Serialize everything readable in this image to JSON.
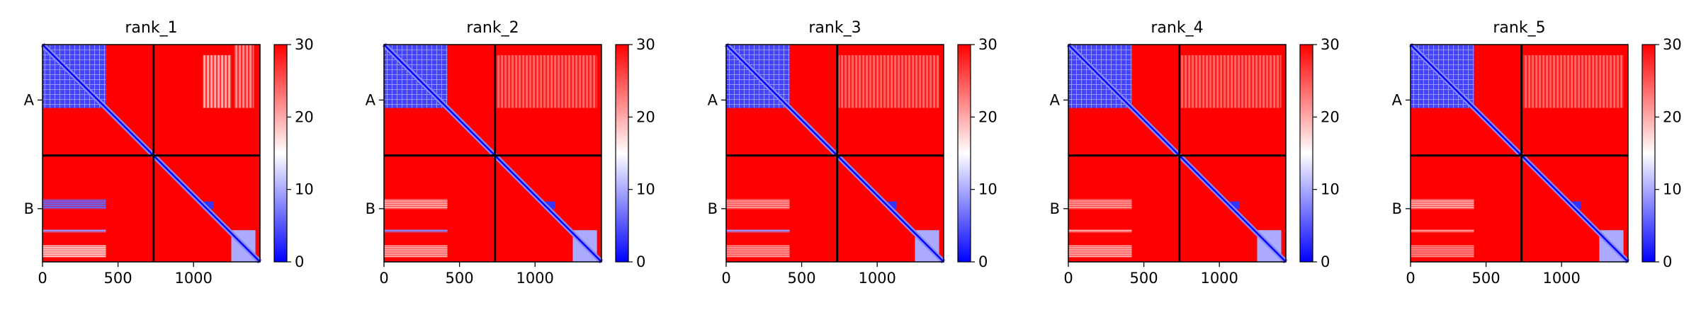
{
  "chart_data": [
    {
      "type": "heatmap",
      "title": "rank_1",
      "xlim": [
        0,
        1440
      ],
      "ylim": [
        1440,
        0
      ],
      "x_ticks": [
        0,
        500,
        1000
      ],
      "chain_ticks": [
        "A",
        "B"
      ],
      "chain_boundary": 735,
      "chains": [
        {
          "name": "A",
          "start": 0,
          "end": 735
        },
        {
          "name": "B",
          "start": 735,
          "end": 1440
        }
      ],
      "colorbar": {
        "min": 0,
        "max": 30,
        "ticks": [
          0,
          10,
          20,
          30
        ],
        "colors": [
          "#0000ff",
          "#ffffff",
          "#ff0000"
        ]
      },
      "low_error_blocks": [
        {
          "x": [
            0,
            420
          ],
          "y": [
            0,
            420
          ],
          "value": 4,
          "pattern": "grid"
        },
        {
          "x": [
            0,
            420
          ],
          "y": [
            1025,
            1090
          ],
          "value": 6,
          "pattern": "rows"
        },
        {
          "x": [
            0,
            420
          ],
          "y": [
            1225,
            1245
          ],
          "value": 9,
          "pattern": "rows"
        },
        {
          "x": [
            0,
            420
          ],
          "y": [
            1330,
            1410
          ],
          "value": 18,
          "pattern": "rows"
        },
        {
          "x": [
            1060,
            1250
          ],
          "y": [
            70,
            420
          ],
          "value": 20,
          "pattern": "cols"
        },
        {
          "x": [
            1270,
            1400
          ],
          "y": [
            0,
            420
          ],
          "value": 22,
          "pattern": "cols"
        },
        {
          "x": [
            1060,
            1130
          ],
          "y": [
            1040,
            1090
          ],
          "value": 3,
          "pattern": "solid"
        },
        {
          "x": [
            1250,
            1410
          ],
          "y": [
            1230,
            1440
          ],
          "value": 10,
          "pattern": "solid"
        }
      ]
    },
    {
      "type": "heatmap",
      "title": "rank_2",
      "xlim": [
        0,
        1440
      ],
      "ylim": [
        1440,
        0
      ],
      "x_ticks": [
        0,
        500,
        1000
      ],
      "chain_ticks": [
        "A",
        "B"
      ],
      "chain_boundary": 735,
      "chains": [
        {
          "name": "A",
          "start": 0,
          "end": 735
        },
        {
          "name": "B",
          "start": 735,
          "end": 1440
        }
      ],
      "colorbar": {
        "min": 0,
        "max": 30,
        "ticks": [
          0,
          10,
          20,
          30
        ],
        "colors": [
          "#0000ff",
          "#ffffff",
          "#ff0000"
        ]
      },
      "low_error_blocks": [
        {
          "x": [
            0,
            420
          ],
          "y": [
            0,
            420
          ],
          "value": 4,
          "pattern": "grid"
        },
        {
          "x": [
            0,
            420
          ],
          "y": [
            1025,
            1090
          ],
          "value": 20,
          "pattern": "rows"
        },
        {
          "x": [
            0,
            420
          ],
          "y": [
            1225,
            1245
          ],
          "value": 8,
          "pattern": "rows"
        },
        {
          "x": [
            0,
            420
          ],
          "y": [
            1330,
            1410
          ],
          "value": 20,
          "pattern": "rows"
        },
        {
          "x": [
            745,
            1410
          ],
          "y": [
            70,
            420
          ],
          "value": 24,
          "pattern": "cols"
        },
        {
          "x": [
            1060,
            1130
          ],
          "y": [
            1040,
            1090
          ],
          "value": 3,
          "pattern": "solid"
        },
        {
          "x": [
            1250,
            1410
          ],
          "y": [
            1230,
            1440
          ],
          "value": 10,
          "pattern": "solid"
        }
      ]
    },
    {
      "type": "heatmap",
      "title": "rank_3",
      "xlim": [
        0,
        1440
      ],
      "ylim": [
        1440,
        0
      ],
      "x_ticks": [
        0,
        500,
        1000
      ],
      "chain_ticks": [
        "A",
        "B"
      ],
      "chain_boundary": 735,
      "chains": [
        {
          "name": "A",
          "start": 0,
          "end": 735
        },
        {
          "name": "B",
          "start": 735,
          "end": 1440
        }
      ],
      "colorbar": {
        "min": 0,
        "max": 30,
        "ticks": [
          0,
          10,
          20,
          30
        ],
        "colors": [
          "#0000ff",
          "#ffffff",
          "#ff0000"
        ]
      },
      "low_error_blocks": [
        {
          "x": [
            0,
            420
          ],
          "y": [
            0,
            420
          ],
          "value": 4,
          "pattern": "grid"
        },
        {
          "x": [
            0,
            420
          ],
          "y": [
            1025,
            1090
          ],
          "value": 21,
          "pattern": "rows"
        },
        {
          "x": [
            0,
            420
          ],
          "y": [
            1225,
            1245
          ],
          "value": 9,
          "pattern": "rows"
        },
        {
          "x": [
            0,
            420
          ],
          "y": [
            1330,
            1410
          ],
          "value": 21,
          "pattern": "rows"
        },
        {
          "x": [
            745,
            1410
          ],
          "y": [
            70,
            420
          ],
          "value": 24,
          "pattern": "cols"
        },
        {
          "x": [
            1060,
            1130
          ],
          "y": [
            1040,
            1090
          ],
          "value": 3,
          "pattern": "solid"
        },
        {
          "x": [
            1250,
            1410
          ],
          "y": [
            1230,
            1440
          ],
          "value": 10,
          "pattern": "solid"
        }
      ]
    },
    {
      "type": "heatmap",
      "title": "rank_4",
      "xlim": [
        0,
        1440
      ],
      "ylim": [
        1440,
        0
      ],
      "x_ticks": [
        0,
        500,
        1000
      ],
      "chain_ticks": [
        "A",
        "B"
      ],
      "chain_boundary": 735,
      "chains": [
        {
          "name": "A",
          "start": 0,
          "end": 735
        },
        {
          "name": "B",
          "start": 735,
          "end": 1440
        }
      ],
      "colorbar": {
        "min": 0,
        "max": 30,
        "ticks": [
          0,
          10,
          20,
          30
        ],
        "colors": [
          "#0000ff",
          "#ffffff",
          "#ff0000"
        ]
      },
      "low_error_blocks": [
        {
          "x": [
            0,
            420
          ],
          "y": [
            0,
            420
          ],
          "value": 4,
          "pattern": "grid"
        },
        {
          "x": [
            0,
            420
          ],
          "y": [
            1025,
            1090
          ],
          "value": 21,
          "pattern": "rows"
        },
        {
          "x": [
            0,
            420
          ],
          "y": [
            1225,
            1245
          ],
          "value": 20,
          "pattern": "rows"
        },
        {
          "x": [
            0,
            420
          ],
          "y": [
            1330,
            1410
          ],
          "value": 20,
          "pattern": "rows"
        },
        {
          "x": [
            745,
            1410
          ],
          "y": [
            70,
            420
          ],
          "value": 24,
          "pattern": "cols"
        },
        {
          "x": [
            1060,
            1130
          ],
          "y": [
            1040,
            1090
          ],
          "value": 3,
          "pattern": "solid"
        },
        {
          "x": [
            1250,
            1410
          ],
          "y": [
            1230,
            1440
          ],
          "value": 10,
          "pattern": "solid"
        }
      ]
    },
    {
      "type": "heatmap",
      "title": "rank_5",
      "xlim": [
        0,
        1440
      ],
      "ylim": [
        1440,
        0
      ],
      "x_ticks": [
        0,
        500,
        1000
      ],
      "chain_ticks": [
        "A",
        "B"
      ],
      "chain_boundary": 735,
      "chains": [
        {
          "name": "A",
          "start": 0,
          "end": 735
        },
        {
          "name": "B",
          "start": 735,
          "end": 1440
        }
      ],
      "colorbar": {
        "min": 0,
        "max": 30,
        "ticks": [
          0,
          10,
          20,
          30
        ],
        "colors": [
          "#0000ff",
          "#ffffff",
          "#ff0000"
        ]
      },
      "low_error_blocks": [
        {
          "x": [
            0,
            420
          ],
          "y": [
            0,
            420
          ],
          "value": 4,
          "pattern": "grid"
        },
        {
          "x": [
            0,
            420
          ],
          "y": [
            1025,
            1090
          ],
          "value": 20,
          "pattern": "rows"
        },
        {
          "x": [
            0,
            420
          ],
          "y": [
            1225,
            1245
          ],
          "value": 21,
          "pattern": "rows"
        },
        {
          "x": [
            0,
            420
          ],
          "y": [
            1330,
            1410
          ],
          "value": 22,
          "pattern": "rows"
        },
        {
          "x": [
            745,
            1410
          ],
          "y": [
            70,
            420
          ],
          "value": 24,
          "pattern": "cols"
        },
        {
          "x": [
            1060,
            1130
          ],
          "y": [
            1040,
            1090
          ],
          "value": 3,
          "pattern": "solid"
        },
        {
          "x": [
            1250,
            1410
          ],
          "y": [
            1230,
            1440
          ],
          "value": 10,
          "pattern": "solid"
        }
      ]
    }
  ]
}
